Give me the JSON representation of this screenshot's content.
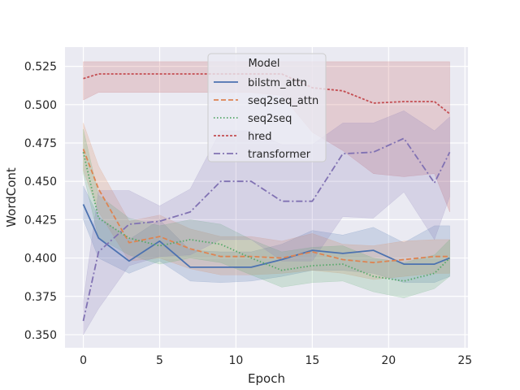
{
  "chart_data": {
    "type": "line",
    "title": "",
    "xlabel": "Epoch",
    "ylabel": "WordCont",
    "xlim": [
      -1.2,
      25.2
    ],
    "ylim": [
      0.3415,
      0.5375
    ],
    "xticks": [
      0,
      5,
      10,
      15,
      20,
      25
    ],
    "xtick_labels": [
      "0",
      "5",
      "10",
      "15",
      "20",
      "25"
    ],
    "yticks": [
      0.35,
      0.375,
      0.4,
      0.425,
      0.45,
      0.475,
      0.5,
      0.525
    ],
    "ytick_labels": [
      "0.350",
      "0.375",
      "0.400",
      "0.425",
      "0.450",
      "0.475",
      "0.500",
      "0.525"
    ],
    "grid": true,
    "legend": {
      "title": "Model",
      "placement": "top-center"
    },
    "x": [
      0,
      1,
      3,
      5,
      7,
      9,
      11,
      13,
      15,
      17,
      19,
      21,
      23,
      24
    ],
    "series": [
      {
        "name": "bilstm_attn",
        "color": "#4c72b0",
        "dash": "solid",
        "values": [
          0.435,
          0.413,
          0.398,
          0.411,
          0.394,
          0.394,
          0.394,
          0.399,
          0.405,
          0.403,
          0.405,
          0.396,
          0.396,
          0.4
        ],
        "lower": [
          0.425,
          0.4,
          0.39,
          0.398,
          0.385,
          0.384,
          0.385,
          0.388,
          0.392,
          0.392,
          0.39,
          0.384,
          0.384,
          0.388
        ],
        "upper": [
          0.447,
          0.427,
          0.412,
          0.425,
          0.405,
          0.404,
          0.404,
          0.409,
          0.418,
          0.415,
          0.42,
          0.41,
          0.421,
          0.421
        ]
      },
      {
        "name": "seq2seq_attn",
        "color": "#dd8452",
        "dash": "dashed",
        "values": [
          0.471,
          0.445,
          0.41,
          0.414,
          0.406,
          0.401,
          0.401,
          0.4,
          0.404,
          0.399,
          0.397,
          0.399,
          0.401,
          0.401
        ],
        "lower": [
          0.457,
          0.43,
          0.398,
          0.4,
          0.393,
          0.389,
          0.389,
          0.39,
          0.392,
          0.39,
          0.386,
          0.388,
          0.39,
          0.39
        ],
        "upper": [
          0.488,
          0.46,
          0.424,
          0.428,
          0.419,
          0.414,
          0.414,
          0.411,
          0.416,
          0.409,
          0.408,
          0.411,
          0.412,
          0.412
        ]
      },
      {
        "name": "seq2seq",
        "color": "#55a868",
        "dash": "dotted",
        "values": [
          0.469,
          0.426,
          0.413,
          0.408,
          0.412,
          0.409,
          0.4,
          0.392,
          0.395,
          0.396,
          0.388,
          0.385,
          0.39,
          0.4
        ],
        "lower": [
          0.455,
          0.413,
          0.402,
          0.396,
          0.4,
          0.397,
          0.389,
          0.381,
          0.384,
          0.385,
          0.378,
          0.374,
          0.38,
          0.388
        ],
        "upper": [
          0.484,
          0.441,
          0.426,
          0.421,
          0.425,
          0.422,
          0.412,
          0.404,
          0.407,
          0.408,
          0.4,
          0.397,
          0.402,
          0.412
        ]
      },
      {
        "name": "hred",
        "color": "#c44e52",
        "dash": "dashdot-dense",
        "values": [
          0.517,
          0.52,
          0.52,
          0.52,
          0.52,
          0.52,
          0.52,
          0.52,
          0.511,
          0.509,
          0.501,
          0.502,
          0.502,
          0.494
        ],
        "lower": [
          0.503,
          0.508,
          0.508,
          0.508,
          0.508,
          0.508,
          0.508,
          0.506,
          0.482,
          0.47,
          0.455,
          0.453,
          0.455,
          0.43
        ],
        "upper": [
          0.528,
          0.528,
          0.528,
          0.528,
          0.528,
          0.528,
          0.528,
          0.528,
          0.528,
          0.528,
          0.528,
          0.528,
          0.528,
          0.528
        ]
      },
      {
        "name": "transformer",
        "color": "#8172b3",
        "dash": "dashdot",
        "values": [
          0.359,
          0.404,
          0.422,
          0.424,
          0.43,
          0.45,
          0.45,
          0.437,
          0.437,
          0.468,
          0.469,
          0.478,
          0.449,
          0.469
        ],
        "lower": [
          0.35,
          0.367,
          0.395,
          0.401,
          0.402,
          0.412,
          0.412,
          0.398,
          0.398,
          0.427,
          0.426,
          0.443,
          0.412,
          0.44
        ],
        "upper": [
          0.372,
          0.444,
          0.444,
          0.434,
          0.445,
          0.483,
          0.483,
          0.474,
          0.474,
          0.488,
          0.488,
          0.496,
          0.483,
          0.492
        ]
      }
    ]
  }
}
